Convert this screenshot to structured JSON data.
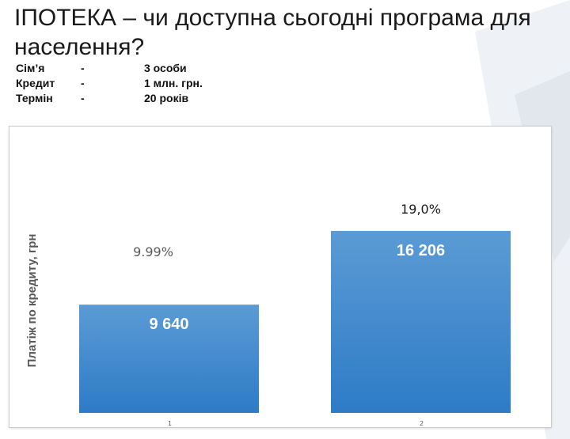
{
  "slide": {
    "title": "ІПОТЕКА – чи доступна сьогодні програма для населення?",
    "params": [
      {
        "label": "Сім’я",
        "dash": "-",
        "value": "3 особи"
      },
      {
        "label": "Кредит",
        "dash": "-",
        "value": "1 млн. грн."
      },
      {
        "label": "Термін",
        "dash": "-",
        "value": "20 років"
      }
    ]
  },
  "chart_data": {
    "type": "bar",
    "title": "",
    "xlabel": "",
    "ylabel": "Платіж по кредиту, грн",
    "categories": [
      "1",
      "2"
    ],
    "values": [
      9640,
      16206
    ],
    "data_labels": [
      "9 640",
      "16 206"
    ],
    "rate_labels": [
      "9.99%",
      "19,0%"
    ],
    "ylim": [
      0,
      18000
    ],
    "grid": false,
    "legend": "none",
    "colors": {
      "bar_top": "#5b9bd5",
      "bar_bottom": "#2e7bc6",
      "data_label": "#ffffff",
      "rate_label_1": "#595959",
      "rate_label_2": "#1a1a1a",
      "ylabel": "#595959",
      "tick": "#595959"
    }
  }
}
